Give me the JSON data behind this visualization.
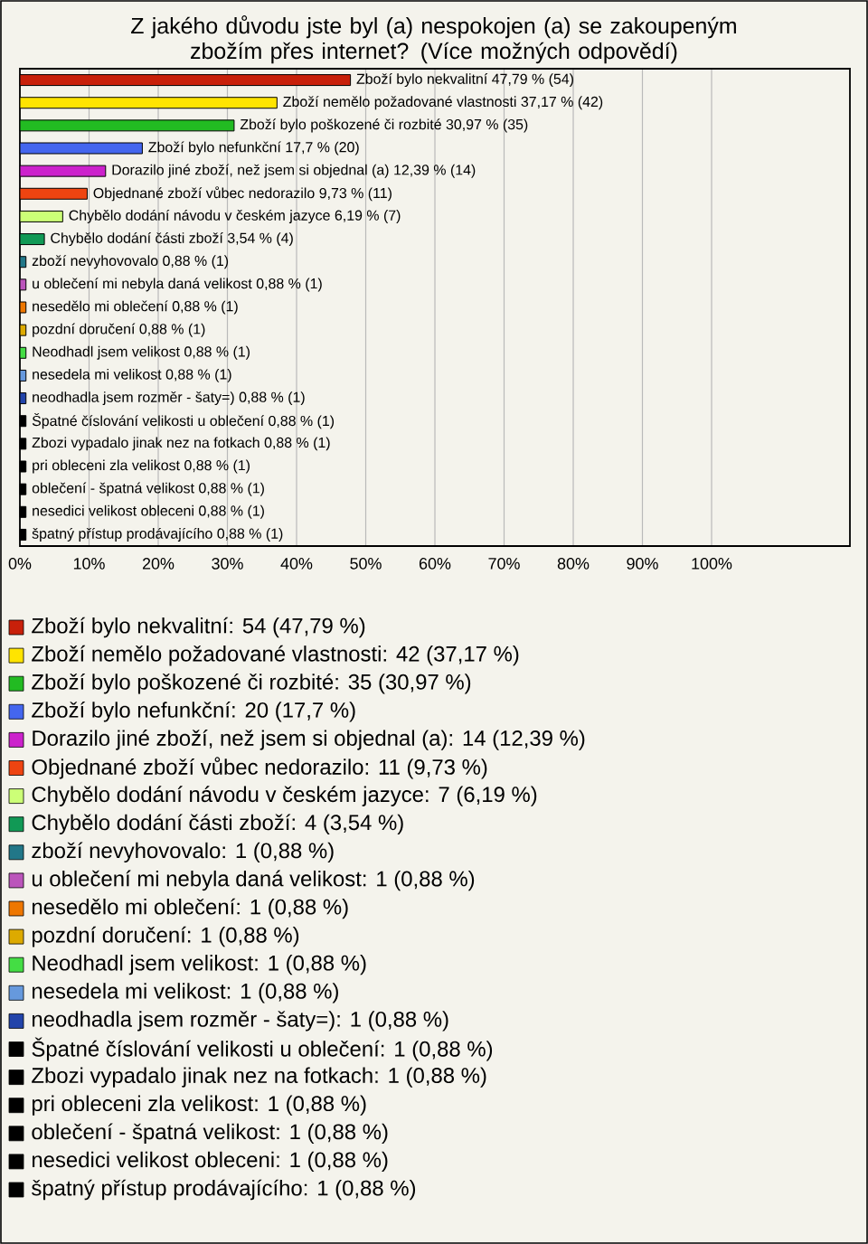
{
  "chart_data": {
    "type": "bar",
    "orientation": "horizontal",
    "title": "Z jakého důvodu jste byl (a) nespokojen (a) se zakoupeným zbožím přes internet? (Více možných odpovědí)",
    "categories": [
      "Zboží bylo nekvalitní",
      "Zboží nemělo požadované vlastnosti",
      "Zboží bylo poškozené či rozbité",
      "Zboží bylo nefunkční",
      "Dorazilo jiné zboží, než jsem si objednal (a)",
      "Objednané zboží vůbec nedorazilo",
      "Chybělo dodání návodu v českém jazyce",
      "Chybělo dodání části zboží",
      "zboží nevyhovovalo",
      "u oblečení mi nebyla daná velikost",
      "nesedělo mi oblečení",
      "pozdní doručení",
      "Neodhadl jsem velikost",
      "nesedela mi velikost",
      "neodhadla jsem rozměr - šaty=)",
      "Špatné číslování velikosti u oblečení",
      "Zbozi vypadalo jinak nez na fotkach",
      "pri obleceni zla velikost",
      "oblečení - špatná velikost",
      "nesedici velikost obleceni",
      "špatný přístup prodávajícího"
    ],
    "value_labels": [
      "47,79 % (54)",
      "37,17 % (42)",
      "30,97 % (35)",
      "17,7 % (20)",
      "12,39 % (14)",
      "9,73 % (11)",
      "6,19 % (7)",
      "3,54 % (4)",
      "0,88 % (1)",
      "0,88 % (1)",
      "0,88 % (1)",
      "0,88 % (1)",
      "0,88 % (1)",
      "0,88 % (1)",
      "0,88 % (1)",
      "0,88 % (1)",
      "0,88 % (1)",
      "0,88 % (1)",
      "0,88 % (1)",
      "0,88 % (1)",
      "0,88 % (1)"
    ],
    "series": [
      {
        "name": "Zboží bylo nekvalitní: 54 (47,79 %)",
        "color": "#c8200a",
        "values": [
          47.79,
          null,
          null,
          null,
          null,
          null,
          null,
          null,
          null,
          null,
          null,
          null,
          null,
          null,
          null,
          null,
          null,
          null,
          null,
          null,
          null
        ]
      },
      {
        "name": "Zboží nemělo požadované vlastnosti: 42 (37,17 %)",
        "color": "#ffe400",
        "values": [
          null,
          37.17,
          null,
          null,
          null,
          null,
          null,
          null,
          null,
          null,
          null,
          null,
          null,
          null,
          null,
          null,
          null,
          null,
          null,
          null,
          null
        ]
      },
      {
        "name": "Zboží bylo poškozené či rozbité: 35 (30,97 %)",
        "color": "#22bb22",
        "values": [
          null,
          null,
          30.97,
          null,
          null,
          null,
          null,
          null,
          null,
          null,
          null,
          null,
          null,
          null,
          null,
          null,
          null,
          null,
          null,
          null,
          null
        ]
      },
      {
        "name": "Zboží bylo nefunkční: 20 (17,7 %)",
        "color": "#4466ee",
        "values": [
          null,
          null,
          null,
          17.7,
          null,
          null,
          null,
          null,
          null,
          null,
          null,
          null,
          null,
          null,
          null,
          null,
          null,
          null,
          null,
          null,
          null
        ]
      },
      {
        "name": "Dorazilo jiné zboží, než jsem si objednal (a): 14 (12,39 %)",
        "color": "#cc22cc",
        "values": [
          null,
          null,
          null,
          null,
          12.39,
          null,
          null,
          null,
          null,
          null,
          null,
          null,
          null,
          null,
          null,
          null,
          null,
          null,
          null,
          null,
          null
        ]
      },
      {
        "name": "Objednané zboží vůbec nedorazilo: 11 (9,73 %)",
        "color": "#ee4411",
        "values": [
          null,
          null,
          null,
          null,
          null,
          9.73,
          null,
          null,
          null,
          null,
          null,
          null,
          null,
          null,
          null,
          null,
          null,
          null,
          null,
          null,
          null
        ]
      },
      {
        "name": "Chybělo dodání návodu v českém jazyce: 7 (6,19 %)",
        "color": "#ccff77",
        "values": [
          null,
          null,
          null,
          null,
          null,
          null,
          6.19,
          null,
          null,
          null,
          null,
          null,
          null,
          null,
          null,
          null,
          null,
          null,
          null,
          null,
          null
        ]
      },
      {
        "name": "Chybělo dodání části zboží: 4 (3,54 %)",
        "color": "#119955",
        "values": [
          null,
          null,
          null,
          null,
          null,
          null,
          null,
          3.54,
          null,
          null,
          null,
          null,
          null,
          null,
          null,
          null,
          null,
          null,
          null,
          null,
          null
        ]
      },
      {
        "name": "zboží nevyhovovalo: 1 (0,88 %)",
        "color": "#227788",
        "values": [
          null,
          null,
          null,
          null,
          null,
          null,
          null,
          null,
          0.88,
          null,
          null,
          null,
          null,
          null,
          null,
          null,
          null,
          null,
          null,
          null,
          null
        ]
      },
      {
        "name": "u oblečení mi nebyla daná velikost: 1 (0,88 %)",
        "color": "#bb55bb",
        "values": [
          null,
          null,
          null,
          null,
          null,
          null,
          null,
          null,
          null,
          0.88,
          null,
          null,
          null,
          null,
          null,
          null,
          null,
          null,
          null,
          null,
          null
        ]
      },
      {
        "name": "nesedělo mi oblečení: 1 (0,88 %)",
        "color": "#ee7700",
        "values": [
          null,
          null,
          null,
          null,
          null,
          null,
          null,
          null,
          null,
          null,
          0.88,
          null,
          null,
          null,
          null,
          null,
          null,
          null,
          null,
          null,
          null
        ]
      },
      {
        "name": "pozdní doručení: 1 (0,88 %)",
        "color": "#ddaa00",
        "values": [
          null,
          null,
          null,
          null,
          null,
          null,
          null,
          null,
          null,
          null,
          null,
          0.88,
          null,
          null,
          null,
          null,
          null,
          null,
          null,
          null,
          null
        ]
      },
      {
        "name": "Neodhadl jsem velikost: 1 (0,88 %)",
        "color": "#44dd44",
        "values": [
          null,
          null,
          null,
          null,
          null,
          null,
          null,
          null,
          null,
          null,
          null,
          null,
          0.88,
          null,
          null,
          null,
          null,
          null,
          null,
          null,
          null
        ]
      },
      {
        "name": "nesedela mi velikost: 1 (0,88 %)",
        "color": "#6699dd",
        "values": [
          null,
          null,
          null,
          null,
          null,
          null,
          null,
          null,
          null,
          null,
          null,
          null,
          null,
          0.88,
          null,
          null,
          null,
          null,
          null,
          null,
          null
        ]
      },
      {
        "name": "neodhadla jsem rozměr - šaty=): 1 (0,88 %)",
        "color": "#2244aa",
        "values": [
          null,
          null,
          null,
          null,
          null,
          null,
          null,
          null,
          null,
          null,
          null,
          null,
          null,
          null,
          0.88,
          null,
          null,
          null,
          null,
          null,
          null
        ]
      },
      {
        "name": "Špatné číslování velikosti u oblečení: 1 (0,88 %)",
        "color": "#000000",
        "values": [
          null,
          null,
          null,
          null,
          null,
          null,
          null,
          null,
          null,
          null,
          null,
          null,
          null,
          null,
          null,
          0.88,
          null,
          null,
          null,
          null,
          null
        ]
      },
      {
        "name": "Zbozi vypadalo jinak nez na fotkach: 1 (0,88 %)",
        "color": "#000000",
        "values": [
          null,
          null,
          null,
          null,
          null,
          null,
          null,
          null,
          null,
          null,
          null,
          null,
          null,
          null,
          null,
          null,
          0.88,
          null,
          null,
          null,
          null
        ]
      },
      {
        "name": "pri obleceni zla velikost: 1 (0,88 %)",
        "color": "#000000",
        "values": [
          null,
          null,
          null,
          null,
          null,
          null,
          null,
          null,
          null,
          null,
          null,
          null,
          null,
          null,
          null,
          null,
          null,
          0.88,
          null,
          null,
          null
        ]
      },
      {
        "name": "oblečení - špatná velikost: 1 (0,88 %)",
        "color": "#000000",
        "values": [
          null,
          null,
          null,
          null,
          null,
          null,
          null,
          null,
          null,
          null,
          null,
          null,
          null,
          null,
          null,
          null,
          null,
          null,
          0.88,
          null,
          null
        ]
      },
      {
        "name": "nesedici velikost obleceni: 1 (0,88 %)",
        "color": "#000000",
        "values": [
          null,
          null,
          null,
          null,
          null,
          null,
          null,
          null,
          null,
          null,
          null,
          null,
          null,
          null,
          null,
          null,
          null,
          null,
          null,
          0.88,
          null
        ]
      },
      {
        "name": "špatný přístup prodávajícího: 1 (0,88 %)",
        "color": "#000000",
        "values": [
          null,
          null,
          null,
          null,
          null,
          null,
          null,
          null,
          null,
          null,
          null,
          null,
          null,
          null,
          null,
          null,
          null,
          null,
          null,
          null,
          0.88
        ]
      }
    ],
    "xlim": [
      0,
      120
    ],
    "xticks": [
      {
        "value": 0,
        "label": "0%"
      },
      {
        "value": 10,
        "label": "10%"
      },
      {
        "value": 20,
        "label": "20%"
      },
      {
        "value": 30,
        "label": "30%"
      },
      {
        "value": 40,
        "label": "40%"
      },
      {
        "value": 50,
        "label": "50%"
      },
      {
        "value": 60,
        "label": "60%"
      },
      {
        "value": 70,
        "label": "70%"
      },
      {
        "value": 80,
        "label": "80%"
      },
      {
        "value": 90,
        "label": "90%"
      },
      {
        "value": 100,
        "label": "100%"
      }
    ],
    "grid": "x",
    "legend": "bottom"
  }
}
